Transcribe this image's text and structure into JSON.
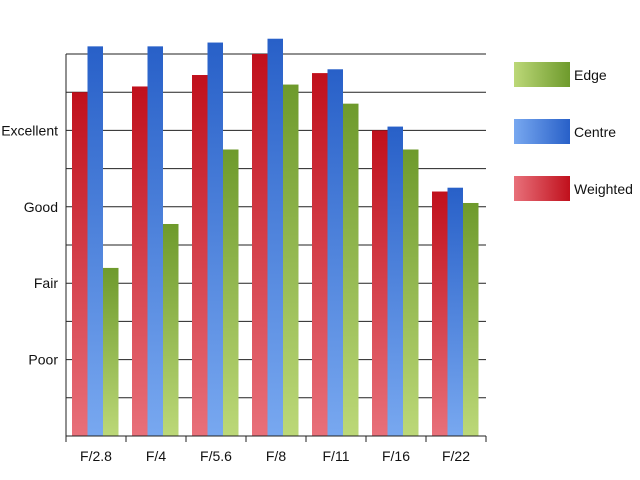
{
  "chart_data": {
    "type": "bar",
    "title": "",
    "xlabel": "",
    "ylabel": "",
    "categories": [
      "F/2.8",
      "F/4",
      "F/5.6",
      "F/8",
      "F/11",
      "F/16",
      "F/22"
    ],
    "y_tick_labels": [
      {
        "label": "Poor",
        "value": 2
      },
      {
        "label": "Fair",
        "value": 4
      },
      {
        "label": "Good",
        "value": 6
      },
      {
        "label": "Excellent",
        "value": 8
      }
    ],
    "ylim": [
      0,
      10.5
    ],
    "grid": true,
    "legend_position": "right",
    "series": [
      {
        "name": "Weighted",
        "color": "#c0101c",
        "color_light": "#e8707a",
        "values": [
          9.0,
          9.15,
          9.45,
          10.0,
          9.5,
          8.0,
          6.4
        ]
      },
      {
        "name": "Centre",
        "color": "#2860c8",
        "color_light": "#78a8f0",
        "values": [
          10.2,
          10.2,
          10.3,
          10.4,
          9.6,
          8.1,
          6.5
        ]
      },
      {
        "name": "Edge",
        "color": "#6e9a2c",
        "color_light": "#bcd878",
        "values": [
          4.4,
          5.55,
          7.5,
          9.2,
          8.7,
          7.5,
          6.1
        ]
      }
    ],
    "legend_order": [
      "Edge",
      "Centre",
      "Weighted"
    ]
  }
}
